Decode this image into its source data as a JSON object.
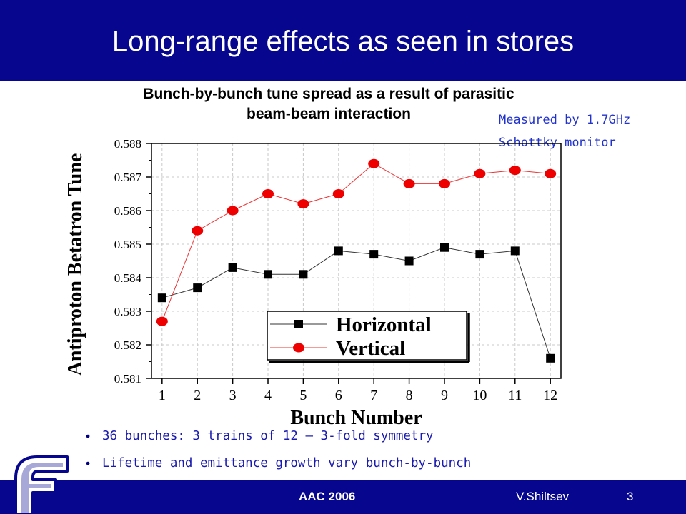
{
  "slide": {
    "title": "Long-range effects as seen in stores",
    "subtitle_line1": "Bunch-by-bunch tune spread as a result of parasitic",
    "subtitle_line2": "beam-beam interaction",
    "note_line1": "Measured by 1.7GHz",
    "note_line2": "Schottky monitor",
    "bullets": [
      "36 bunches: 3 trains of 12 – 3-fold symmetry",
      "Lifetime and emittance growth vary bunch-by-bunch"
    ],
    "footer": {
      "left": "AAC 2006",
      "author": "V.Shiltsev",
      "page": "3"
    },
    "logo_icon": "fermilab-f-logo"
  },
  "chart_data": {
    "type": "line",
    "xlabel": "Bunch Number",
    "ylabel": "Antiproton Betatron Tune",
    "categories": [
      "1",
      "2",
      "3",
      "4",
      "5",
      "6",
      "7",
      "8",
      "9",
      "10",
      "11",
      "12"
    ],
    "x": [
      1,
      2,
      3,
      4,
      5,
      6,
      7,
      8,
      9,
      10,
      11,
      12
    ],
    "xlim": [
      0.7,
      12.3
    ],
    "ylim": [
      0.581,
      0.588
    ],
    "yticks": [
      "0.581",
      "0.582",
      "0.583",
      "0.584",
      "0.585",
      "0.586",
      "0.587",
      "0.588"
    ],
    "grid": true,
    "legend": "bottom-right",
    "series": [
      {
        "name": "Horizontal",
        "marker": "square",
        "color": "#000000",
        "line_color": "#333333",
        "values": [
          0.5834,
          0.5837,
          0.5843,
          0.5841,
          0.5841,
          0.5848,
          0.5847,
          0.5845,
          0.5849,
          0.5847,
          0.5848,
          0.5816
        ]
      },
      {
        "name": "Vertical",
        "marker": "circle",
        "color": "#ee0000",
        "line_color": "#ee3333",
        "values": [
          0.5827,
          0.5854,
          0.586,
          0.5865,
          0.5862,
          0.5865,
          0.5874,
          0.5868,
          0.5868,
          0.5871,
          0.5872,
          0.5871
        ]
      }
    ]
  }
}
